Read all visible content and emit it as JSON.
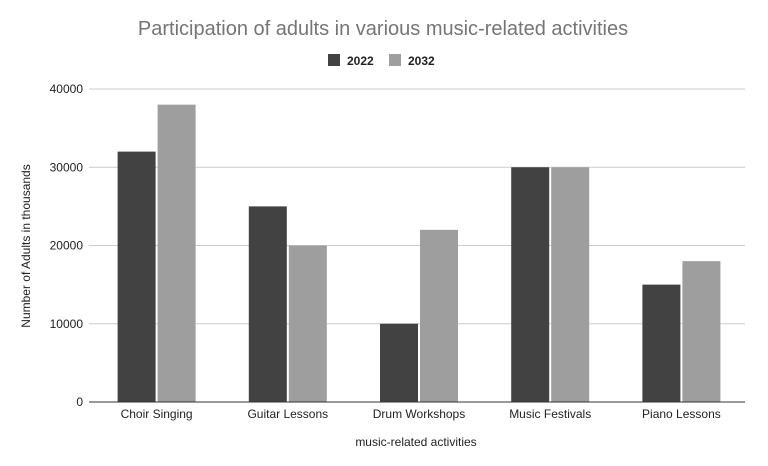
{
  "chart_data": {
    "type": "bar",
    "title": "Participation of adults in various music-related activities",
    "xlabel": "music-related activities",
    "ylabel": "Number of Adults in thousands",
    "categories": [
      "Choir Singing",
      "Guitar Lessons",
      "Drum Workshops",
      "Music Festivals",
      "Piano Lessons"
    ],
    "series": [
      {
        "name": "2022",
        "values": [
          32000,
          25000,
          10000,
          30000,
          15000
        ],
        "color": "#424242"
      },
      {
        "name": "2032",
        "values": [
          38000,
          20000,
          22000,
          30000,
          18000
        ],
        "color": "#9e9e9e"
      }
    ],
    "ylim": [
      0,
      40000
    ],
    "yticks": [
      0,
      10000,
      20000,
      30000,
      40000
    ],
    "grid": true,
    "legend_position": "top"
  }
}
